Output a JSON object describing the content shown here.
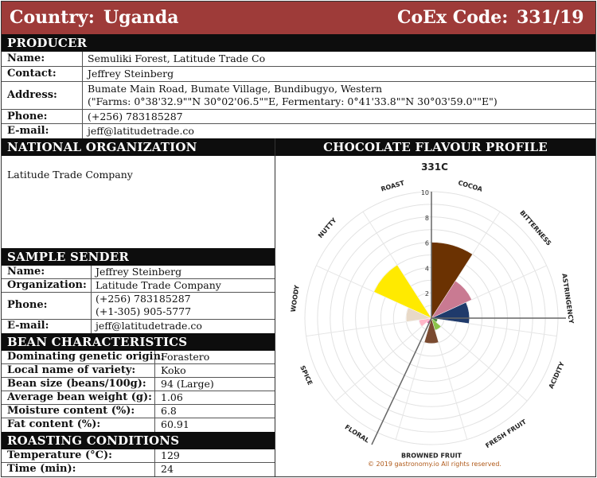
{
  "header": {
    "country_label": "Country:",
    "country_value": "Uganda",
    "coex_label": "CoEx Code:",
    "coex_value": "331/19",
    "bg_color": "#9e3b39"
  },
  "producer": {
    "title": "PRODUCER",
    "name_label": "Name:",
    "name": "Semuliki Forest, Latitude Trade Co",
    "contact_label": "Contact:",
    "contact": "Jeffrey Steinberg",
    "address_label": "Address:",
    "address_line1": "Bumate Main Road, Bumate Village, Bundibugyo, Western",
    "address_line2": "(\"Farms: 0°38'32.9\"\"N 30°02'06.5\"\"E, Fermentary: 0°41'33.8\"\"N 30°03'59.0\"\"E\")",
    "phone_label": "Phone:",
    "phone": "(+256) 783185287",
    "email_label": "E-mail:",
    "email": "jeff@latitudetrade.co"
  },
  "noc": {
    "title": "NATIONAL ORGANIZATION COMMITTEE",
    "value": "Latitude Trade Company"
  },
  "sender": {
    "title": "SAMPLE SENDER",
    "name_label": "Name:",
    "name": "Jeffrey Steinberg",
    "org_label": "Organization:",
    "org": "Latitude Trade Company",
    "phone_label": "Phone:",
    "phone1": "(+256) 783185287",
    "phone2": "(+1-305) 905-5777",
    "email_label": "E-mail:",
    "email": "jeff@latitudetrade.co"
  },
  "bean": {
    "title": "BEAN CHARACTERISTICS",
    "rows": [
      {
        "label": "Dominating genetic origin:",
        "value": "Forastero"
      },
      {
        "label": "Local name of variety:",
        "value": "Koko"
      },
      {
        "label": "Bean size (beans/100g):",
        "value": "94 (Large)"
      },
      {
        "label": "Average bean weight (g):",
        "value": "1.06"
      },
      {
        "label": "Moisture content (%):",
        "value": "6.8"
      },
      {
        "label": "Fat content (%):",
        "value": "60.91"
      }
    ]
  },
  "roasting": {
    "title": "ROASTING CONDITIONS",
    "rows": [
      {
        "label": "Temperature (°C):",
        "value": "129"
      },
      {
        "label": "Time (min):",
        "value": "24"
      }
    ]
  },
  "flavour": {
    "title": "CHOCOLATE FLAVOUR PROFILE",
    "footer": "© 2019 gastronomy.io All rights reserved."
  },
  "chart_data": {
    "type": "polar-bar",
    "title": "331C",
    "rlim": [
      0,
      10
    ],
    "r_ticks": [
      "2",
      "4",
      "6",
      "8",
      "10"
    ],
    "categories": [
      "COCOA",
      "BITTERNESS",
      "ASTRINGENCY",
      "ACIDITY",
      "FRESH FRUIT",
      "BROWNED FRUIT",
      "FLORAL",
      "SPICE",
      "WOODY",
      "NUTTY",
      "ROAST"
    ],
    "values": [
      6,
      3.5,
      3,
      0.5,
      1,
      2,
      0.5,
      1,
      2,
      5,
      0
    ],
    "colors": [
      "#6b3202",
      "#c97a92",
      "#1f3a6b",
      "#4a8a3c",
      "#8bc34a",
      "#7a4a30",
      "#e46aa7",
      "#ffb6c8",
      "#e8d9c7",
      "#ffea00",
      "#5a3310"
    ],
    "grid": true
  }
}
